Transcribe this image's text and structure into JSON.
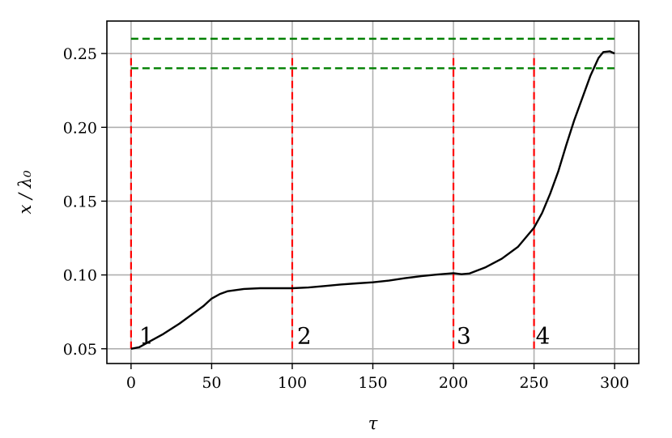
{
  "chart_data": {
    "type": "line",
    "title": "",
    "xlabel": "τ",
    "ylabel": "x / λ₀",
    "xlim": [
      -15,
      315
    ],
    "ylim": [
      0.04,
      0.272
    ],
    "xticks": [
      0,
      50,
      100,
      150,
      200,
      250,
      300
    ],
    "yticks": [
      0.05,
      0.1,
      0.15,
      0.2,
      0.25
    ],
    "xtick_labels": [
      "0",
      "50",
      "100",
      "150",
      "200",
      "250",
      "300"
    ],
    "ytick_labels": [
      "0.05",
      "0.10",
      "0.15",
      "0.20",
      "0.25"
    ],
    "grid": true,
    "series": [
      {
        "color": "#000000",
        "style": "solid",
        "x": [
          0,
          5,
          10,
          20,
          30,
          40,
          45,
          50,
          55,
          60,
          70,
          80,
          90,
          100,
          110,
          120,
          130,
          140,
          150,
          160,
          170,
          180,
          190,
          200,
          205,
          210,
          220,
          230,
          240,
          250,
          255,
          260,
          265,
          270,
          275,
          280,
          285,
          290,
          293,
          297,
          300
        ],
        "y": [
          0.05,
          0.051,
          0.054,
          0.06,
          0.067,
          0.075,
          0.079,
          0.084,
          0.087,
          0.089,
          0.0905,
          0.091,
          0.091,
          0.091,
          0.0915,
          0.0925,
          0.0935,
          0.0943,
          0.095,
          0.0962,
          0.0978,
          0.0992,
          0.1003,
          0.1012,
          0.1005,
          0.101,
          0.1052,
          0.111,
          0.119,
          0.132,
          0.142,
          0.155,
          0.17,
          0.188,
          0.205,
          0.22,
          0.235,
          0.247,
          0.251,
          0.2515,
          0.25
        ]
      }
    ],
    "hlines": [
      {
        "y": 0.26,
        "x_range": [
          0,
          300
        ],
        "color": "#008000",
        "style": "dashed"
      },
      {
        "y": 0.24,
        "x_range": [
          0,
          300
        ],
        "color": "#008000",
        "style": "dashed"
      }
    ],
    "vlines": [
      {
        "x": 0,
        "y_range": [
          0.05,
          0.25
        ],
        "color": "#ff0000",
        "style": "dashed"
      },
      {
        "x": 100,
        "y_range": [
          0.05,
          0.25
        ],
        "color": "#ff0000",
        "style": "dashed"
      },
      {
        "x": 200,
        "y_range": [
          0.05,
          0.25
        ],
        "color": "#ff0000",
        "style": "dashed"
      },
      {
        "x": 250,
        "y_range": [
          0.05,
          0.25
        ],
        "color": "#ff0000",
        "style": "dashed"
      }
    ],
    "annotations": [
      {
        "text": "1",
        "x": 5,
        "y": 0.0535
      },
      {
        "text": "2",
        "x": 103,
        "y": 0.0535
      },
      {
        "text": "3",
        "x": 202,
        "y": 0.0535
      },
      {
        "text": "4",
        "x": 251,
        "y": 0.0535
      }
    ]
  }
}
